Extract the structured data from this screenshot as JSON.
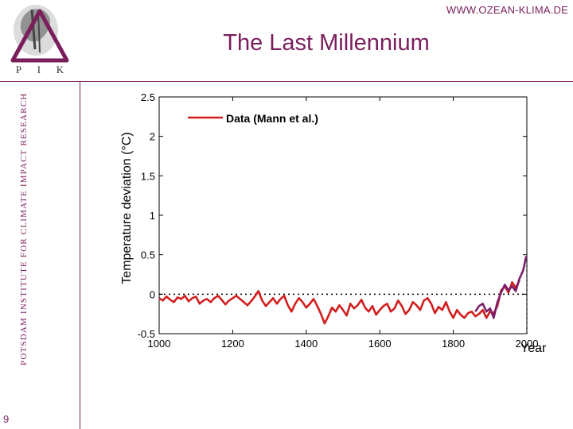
{
  "header": {
    "site_url": "WWW.OZEAN-KLIMA.DE",
    "title": "The Last Millennium"
  },
  "logo": {
    "letters": [
      "P",
      "I",
      "K"
    ],
    "institute_name": "POTSDAM INSTITUTE FOR CLIMATE IMPACT RESEARCH"
  },
  "page_number": "9",
  "colors": {
    "brand": "#7a1f5c",
    "series_red": "#d11f1f",
    "series_purple": "#7a1f6a"
  },
  "chart_data": {
    "type": "line",
    "xlabel": "Year",
    "ylabel": "Temperature deviation (°C)",
    "xlim": [
      1000,
      2000
    ],
    "ylim": [
      -0.5,
      2.5
    ],
    "x_ticks": [
      1000,
      1200,
      1400,
      1600,
      1800,
      2000
    ],
    "y_ticks": [
      -0.5,
      0,
      0.5,
      1,
      1.5,
      2,
      2.5
    ],
    "y_tick_labels": [
      "-0.5",
      "0",
      "0.5",
      "1",
      "1.5",
      "2",
      "2.5"
    ],
    "reference_lines": {
      "y": 0,
      "x": 2000,
      "style": "dotted"
    },
    "legend": {
      "label": "Data (Mann et al.)",
      "position": "top-left"
    },
    "series": [
      {
        "name": "Data (Mann et al.)",
        "color": "#d11f1f",
        "x": [
          1000,
          1010,
          1020,
          1030,
          1040,
          1050,
          1060,
          1070,
          1080,
          1090,
          1100,
          1110,
          1120,
          1130,
          1140,
          1150,
          1160,
          1170,
          1180,
          1190,
          1200,
          1210,
          1220,
          1230,
          1240,
          1250,
          1260,
          1270,
          1280,
          1290,
          1300,
          1310,
          1320,
          1330,
          1340,
          1350,
          1360,
          1370,
          1380,
          1390,
          1400,
          1410,
          1420,
          1430,
          1440,
          1450,
          1460,
          1470,
          1480,
          1490,
          1500,
          1510,
          1520,
          1530,
          1540,
          1550,
          1560,
          1570,
          1580,
          1590,
          1600,
          1610,
          1620,
          1630,
          1640,
          1650,
          1660,
          1670,
          1680,
          1690,
          1700,
          1710,
          1720,
          1730,
          1740,
          1750,
          1760,
          1770,
          1780,
          1790,
          1800,
          1810,
          1820,
          1830,
          1840,
          1850,
          1860,
          1870,
          1880,
          1890,
          1900,
          1910,
          1920,
          1930,
          1940,
          1950,
          1960,
          1970,
          1980
        ],
        "y": [
          -0.05,
          -0.08,
          -0.03,
          -0.07,
          -0.1,
          -0.04,
          -0.06,
          -0.02,
          -0.09,
          -0.05,
          -0.03,
          -0.12,
          -0.08,
          -0.06,
          -0.1,
          -0.05,
          -0.02,
          -0.07,
          -0.13,
          -0.08,
          -0.05,
          -0.02,
          -0.06,
          -0.1,
          -0.14,
          -0.09,
          -0.03,
          0.04,
          -0.08,
          -0.15,
          -0.1,
          -0.05,
          -0.12,
          -0.06,
          -0.02,
          -0.14,
          -0.22,
          -0.12,
          -0.05,
          -0.1,
          -0.17,
          -0.12,
          -0.06,
          -0.15,
          -0.25,
          -0.37,
          -0.28,
          -0.17,
          -0.22,
          -0.14,
          -0.2,
          -0.27,
          -0.12,
          -0.18,
          -0.14,
          -0.07,
          -0.17,
          -0.22,
          -0.15,
          -0.26,
          -0.2,
          -0.15,
          -0.12,
          -0.22,
          -0.18,
          -0.08,
          -0.15,
          -0.25,
          -0.2,
          -0.1,
          -0.14,
          -0.2,
          -0.08,
          -0.05,
          -0.12,
          -0.24,
          -0.16,
          -0.2,
          -0.1,
          -0.22,
          -0.3,
          -0.2,
          -0.26,
          -0.3,
          -0.24,
          -0.22,
          -0.28,
          -0.25,
          -0.2,
          -0.3,
          -0.22,
          -0.24,
          -0.15,
          0.05,
          0.1,
          0.02,
          0.15,
          0.08,
          0.18
        ]
      },
      {
        "name": "",
        "color": "#7a1f6a",
        "x": [
          1860,
          1870,
          1880,
          1890,
          1900,
          1910,
          1920,
          1930,
          1940,
          1950,
          1960,
          1970,
          1980,
          1990,
          1998
        ],
        "y": [
          -0.22,
          -0.15,
          -0.12,
          -0.22,
          -0.18,
          -0.3,
          -0.1,
          0.02,
          0.12,
          0.05,
          0.1,
          0.04,
          0.2,
          0.3,
          0.48
        ]
      }
    ]
  }
}
